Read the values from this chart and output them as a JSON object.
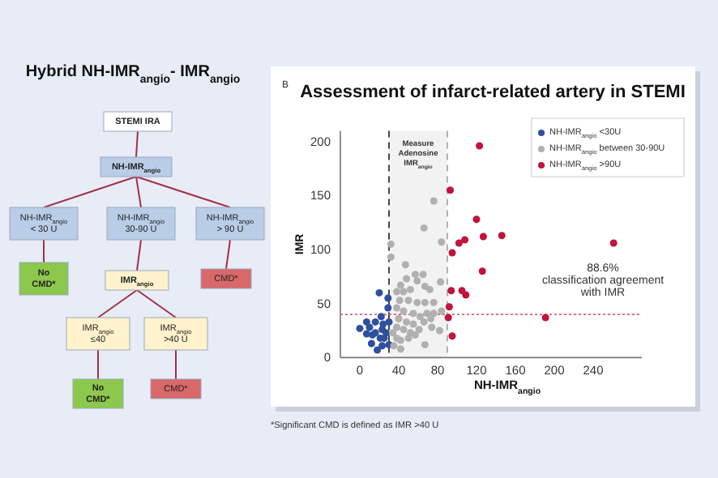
{
  "chart_data": [
    {
      "type": "other",
      "title": "Hybrid NH-IMR$_{angio}$- IMR$_{angio}$",
      "annotations": [
        "STEMI IRA",
        "NH-IMR$_{angio}$",
        "NH-IMR$_{angio}$\n< 30 U",
        "NH-IMR$_{angio}$\n30-90 U",
        "NH-IMR$_{angio}$\n> 90 U",
        "No\nCMD*",
        "IMR$_{angio}$",
        "CMD*",
        "IMR$_{angio}$\n≤40",
        "IMR$_{angio}$\n>40 U",
        "No\nCMD*",
        "CMD*"
      ]
    },
    {
      "type": "scatter",
      "title": "Assessment of infarct-related artery in STEMI",
      "xlabel": "NH-IMR$_{angio}$",
      "ylabel": "IMR",
      "xlim": [
        -20,
        290
      ],
      "xticks": [
        0,
        40,
        80,
        120,
        160,
        200,
        240
      ],
      "ylim": [
        0,
        210
      ],
      "yticks": [
        0,
        50,
        100,
        150,
        200
      ],
      "grid": false,
      "legend": "top right",
      "marker": "circle",
      "bands": [
        {
          "axis": "x",
          "from": 30,
          "to": 90,
          "label": "Measure\nAdenosine\nIMR$_{angio}$",
          "color": "#f2f2f2"
        }
      ],
      "ref_lines": [
        {
          "axis": "x",
          "value": 30,
          "color": "#333333",
          "line_style": "dashed"
        },
        {
          "axis": "x",
          "value": 90,
          "color": "#aaaaaa",
          "line_style": "dashed"
        },
        {
          "axis": "y",
          "value": 40,
          "color": "#e06070",
          "line_style": "dotted"
        }
      ],
      "annotations": [
        "B",
        "88.6%\nclassification agreement\nwith IMR",
        "*Significant CMD is defined as IMR >40 U"
      ],
      "series": [
        {
          "name": "NH-IMR$_{angio}$ <30U",
          "color": "#2f4f9f",
          "x": [
            0,
            7,
            7,
            12,
            16,
            21,
            18,
            23,
            24,
            27,
            22,
            29,
            30,
            13,
            25,
            20,
            29,
            16,
            23,
            10,
            30
          ],
          "values": [
            27,
            33,
            22,
            13,
            33,
            18,
            7,
            11,
            31,
            23,
            38,
            46,
            33,
            21,
            18,
            60,
            55,
            23,
            26,
            28,
            12
          ]
        },
        {
          "name": "NH-IMR$_{angio}$ between 30-90U",
          "color": "#b0b0b0",
          "x": [
            32,
            32,
            47,
            76,
            66,
            84,
            83,
            57,
            65,
            59,
            48,
            42,
            38,
            45,
            52,
            67,
            72,
            41,
            50,
            59,
            67,
            76,
            38,
            45,
            55,
            62,
            69,
            76,
            84,
            40,
            48,
            55,
            66,
            73,
            38,
            45,
            52,
            61,
            38,
            42,
            50,
            57,
            35,
            67,
            74,
            34,
            42,
            82
          ],
          "values": [
            105,
            93,
            86,
            145,
            120,
            107,
            70,
            77,
            77,
            71,
            73,
            67,
            61,
            61,
            63,
            66,
            63,
            53,
            53,
            51,
            51,
            51,
            46,
            43,
            41,
            38,
            41,
            41,
            43,
            36,
            33,
            31,
            33,
            36,
            28,
            26,
            23,
            26,
            18,
            16,
            18,
            21,
            11,
            12,
            28,
            23,
            8,
            25
          ]
        },
        {
          "name": "NH-IMR$_{angio}$ >90U",
          "color": "#c0143c",
          "x": [
            123,
            93,
            120,
            102,
            108,
            127,
            146,
            261,
            95,
            126,
            94,
            105,
            109,
            92,
            91,
            191,
            95
          ],
          "values": [
            196,
            155,
            128,
            106,
            109,
            112,
            113,
            106,
            97,
            80,
            62,
            62,
            58,
            47,
            37,
            37,
            20
          ]
        }
      ]
    }
  ]
}
